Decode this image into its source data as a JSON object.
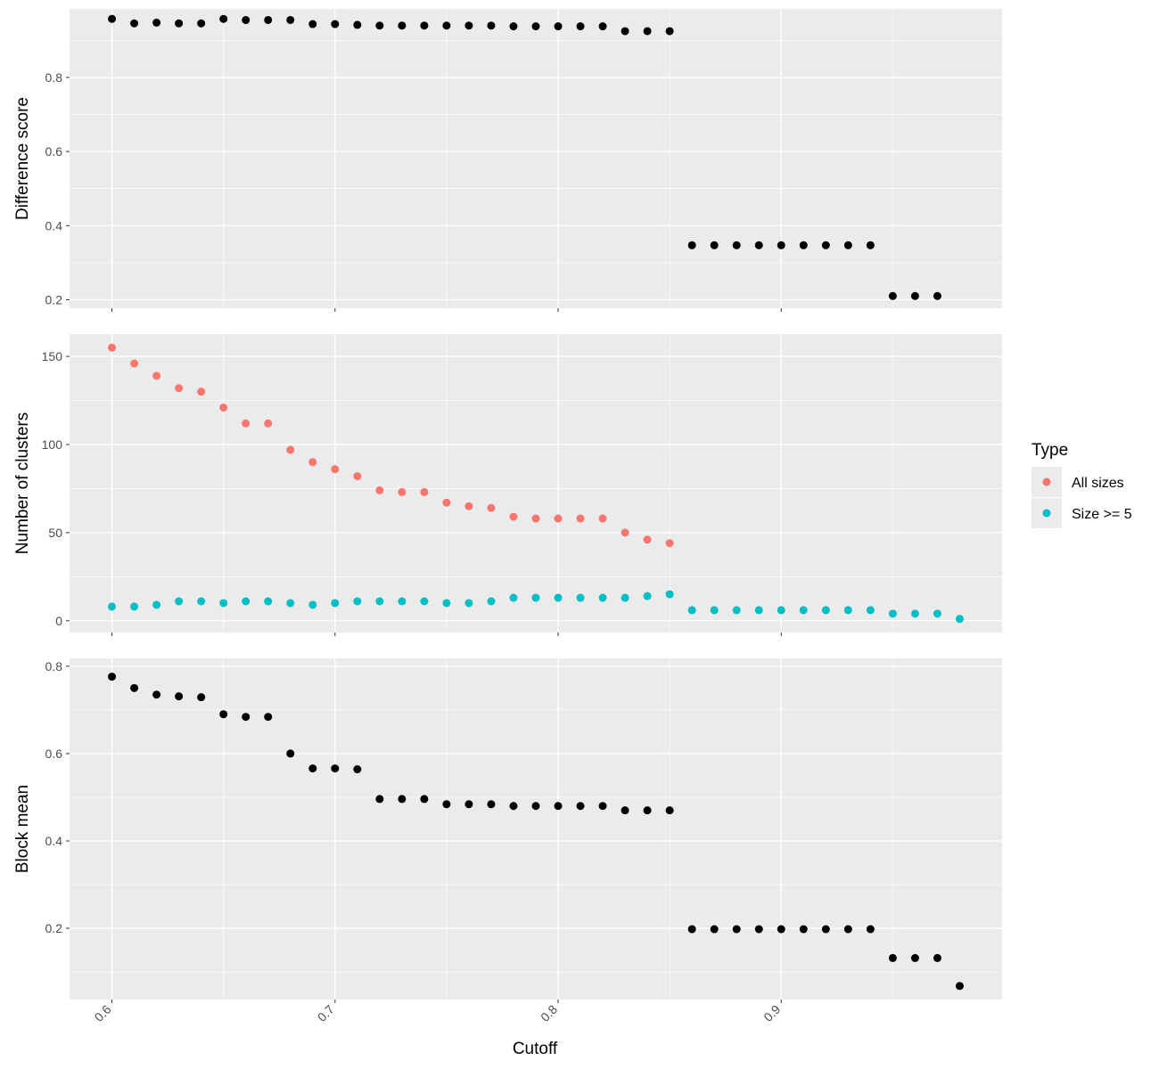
{
  "colors": {
    "panel_bg": "#EBEBEB",
    "grid_major": "#FFFFFF",
    "point_default": "#000000",
    "all_sizes": "#F8766D",
    "size_ge_5": "#00BFC4",
    "tick_text": "#4D4D4D",
    "tick_mark": "#333333"
  },
  "chart_data": [
    {
      "type": "scatter",
      "ylabel": "Difference score",
      "xlabel": "Cutoff",
      "xlim": [
        0.581,
        0.999
      ],
      "ylim": [
        0.177,
        0.985
      ],
      "y_ticks": [
        0.2,
        0.4,
        0.6,
        0.8
      ],
      "x_ticks": [
        0.6,
        0.7,
        0.8,
        0.9
      ],
      "grid": true,
      "series": [
        {
          "color_key": "point_default",
          "x": [
            0.6,
            0.61,
            0.62,
            0.63,
            0.64,
            0.65,
            0.66,
            0.67,
            0.68,
            0.69,
            0.7,
            0.71,
            0.72,
            0.73,
            0.74,
            0.75,
            0.76,
            0.77,
            0.78,
            0.79,
            0.8,
            0.81,
            0.82,
            0.83,
            0.84,
            0.85,
            0.86,
            0.87,
            0.88,
            0.89,
            0.9,
            0.91,
            0.92,
            0.93,
            0.94,
            0.95,
            0.96,
            0.97
          ],
          "y": [
            0.958,
            0.946,
            0.948,
            0.946,
            0.946,
            0.958,
            0.955,
            0.955,
            0.955,
            0.944,
            0.944,
            0.942,
            0.94,
            0.94,
            0.94,
            0.94,
            0.94,
            0.94,
            0.938,
            0.938,
            0.938,
            0.938,
            0.938,
            0.925,
            0.925,
            0.925,
            0.347,
            0.347,
            0.347,
            0.347,
            0.347,
            0.347,
            0.347,
            0.347,
            0.347,
            0.21,
            0.21,
            0.21
          ]
        }
      ]
    },
    {
      "type": "scatter",
      "ylabel": "Number of clusters",
      "xlabel": "Cutoff",
      "xlim": [
        0.581,
        0.999
      ],
      "ylim": [
        -6.7,
        162.7
      ],
      "y_ticks": [
        0,
        50,
        100,
        150
      ],
      "x_ticks": [
        0.6,
        0.7,
        0.8,
        0.9
      ],
      "grid": true,
      "legend": {
        "title": "Type",
        "position": "right",
        "entries": [
          "All sizes",
          "Size >= 5"
        ]
      },
      "series": [
        {
          "name": "All sizes",
          "color_key": "all_sizes",
          "x": [
            0.6,
            0.61,
            0.62,
            0.63,
            0.64,
            0.65,
            0.66,
            0.67,
            0.68,
            0.69,
            0.7,
            0.71,
            0.72,
            0.73,
            0.74,
            0.75,
            0.76,
            0.77,
            0.78,
            0.79,
            0.8,
            0.81,
            0.82,
            0.83,
            0.84,
            0.85
          ],
          "y": [
            155,
            146,
            139,
            132,
            130,
            121,
            112,
            112,
            97,
            90,
            86,
            82,
            74,
            73,
            73,
            67,
            65,
            64,
            59,
            58,
            58,
            58,
            58,
            50,
            46,
            44
          ]
        },
        {
          "name": "Size >= 5",
          "color_key": "size_ge_5",
          "x": [
            0.6,
            0.61,
            0.62,
            0.63,
            0.64,
            0.65,
            0.66,
            0.67,
            0.68,
            0.69,
            0.7,
            0.71,
            0.72,
            0.73,
            0.74,
            0.75,
            0.76,
            0.77,
            0.78,
            0.79,
            0.8,
            0.81,
            0.82,
            0.83,
            0.84,
            0.85,
            0.86,
            0.87,
            0.88,
            0.89,
            0.9,
            0.91,
            0.92,
            0.93,
            0.94,
            0.95,
            0.96,
            0.97,
            0.98
          ],
          "y": [
            8,
            8,
            9,
            11,
            11,
            10,
            11,
            11,
            10,
            9,
            10,
            11,
            11,
            11,
            11,
            10,
            10,
            11,
            13,
            13,
            13,
            13,
            13,
            13,
            14,
            15,
            6,
            6,
            6,
            6,
            6,
            6,
            6,
            6,
            6,
            4,
            4,
            4,
            1
          ]
        }
      ]
    },
    {
      "type": "scatter",
      "ylabel": "Block mean",
      "xlabel": "Cutoff",
      "xlim": [
        0.581,
        0.999
      ],
      "ylim": [
        0.037,
        0.818
      ],
      "y_ticks": [
        0.2,
        0.4,
        0.6,
        0.8
      ],
      "x_ticks": [
        0.6,
        0.7,
        0.8,
        0.9
      ],
      "grid": true,
      "series": [
        {
          "color_key": "point_default",
          "x": [
            0.6,
            0.61,
            0.62,
            0.63,
            0.64,
            0.65,
            0.66,
            0.67,
            0.68,
            0.69,
            0.7,
            0.71,
            0.72,
            0.73,
            0.74,
            0.75,
            0.76,
            0.77,
            0.78,
            0.79,
            0.8,
            0.81,
            0.82,
            0.83,
            0.84,
            0.85,
            0.86,
            0.87,
            0.88,
            0.89,
            0.9,
            0.91,
            0.92,
            0.93,
            0.94,
            0.95,
            0.96,
            0.97,
            0.98
          ],
          "y": [
            0.776,
            0.75,
            0.735,
            0.731,
            0.729,
            0.69,
            0.684,
            0.684,
            0.6,
            0.566,
            0.566,
            0.564,
            0.496,
            0.496,
            0.496,
            0.484,
            0.484,
            0.484,
            0.48,
            0.48,
            0.48,
            0.48,
            0.48,
            0.47,
            0.47,
            0.47,
            0.198,
            0.198,
            0.198,
            0.198,
            0.198,
            0.198,
            0.198,
            0.198,
            0.198,
            0.132,
            0.132,
            0.132,
            0.068
          ]
        }
      ]
    }
  ]
}
